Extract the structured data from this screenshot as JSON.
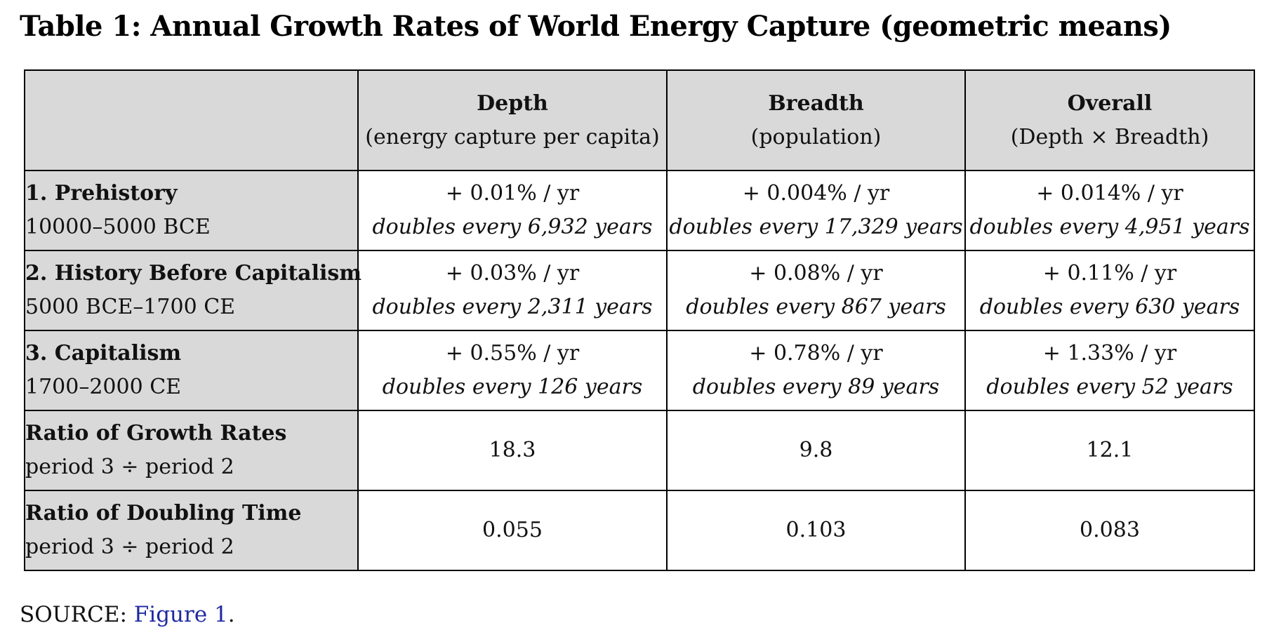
{
  "title": "Table 1: Annual Growth Rates of World Energy Capture (geometric means)",
  "table": {
    "columns": [
      {
        "title": "Depth",
        "subtitle": "(energy capture per capita)"
      },
      {
        "title": "Breadth",
        "subtitle": "(population)"
      },
      {
        "title": "Overall",
        "subtitle": "(Depth × Breadth)"
      }
    ],
    "periods": [
      {
        "label": "1. Prehistory",
        "range": "10000–5000 BCE",
        "cells": [
          {
            "rate": "+ 0.01% / yr",
            "doubling": "doubles every 6,932 years"
          },
          {
            "rate": "+ 0.004% / yr",
            "doubling": "doubles every 17,329 years"
          },
          {
            "rate": "+ 0.014% / yr",
            "doubling": "doubles every 4,951 years"
          }
        ]
      },
      {
        "label": "2. History Before Capitalism",
        "range": "5000 BCE–1700 CE",
        "cells": [
          {
            "rate": "+ 0.03% / yr",
            "doubling": "doubles every 2,311 years"
          },
          {
            "rate": "+ 0.08% / yr",
            "doubling": "doubles every 867 years"
          },
          {
            "rate": "+ 0.11% / yr",
            "doubling": "doubles every 630 years"
          }
        ]
      },
      {
        "label": "3. Capitalism",
        "range": "1700–2000 CE",
        "cells": [
          {
            "rate": "+ 0.55% / yr",
            "doubling": "doubles every 126 years"
          },
          {
            "rate": "+ 0.78% / yr",
            "doubling": "doubles every 89 years"
          },
          {
            "rate": "+ 1.33% / yr",
            "doubling": "doubles every 52 years"
          }
        ]
      }
    ],
    "ratios": [
      {
        "label": "Ratio of Growth Rates",
        "sublabel": "period 3 ÷ period 2",
        "values": [
          "18.3",
          "9.8",
          "12.1"
        ]
      },
      {
        "label": "Ratio of Doubling Time",
        "sublabel": "period 3 ÷ period 2",
        "values": [
          "0.055",
          "0.103",
          "0.083"
        ]
      }
    ]
  },
  "source": {
    "prefix": "SOURCE: ",
    "link_text": "Figure 1",
    "suffix": "."
  },
  "colors": {
    "header_shading": "#d9d9d9",
    "link": "#1f2aa0",
    "border": "#000000"
  }
}
